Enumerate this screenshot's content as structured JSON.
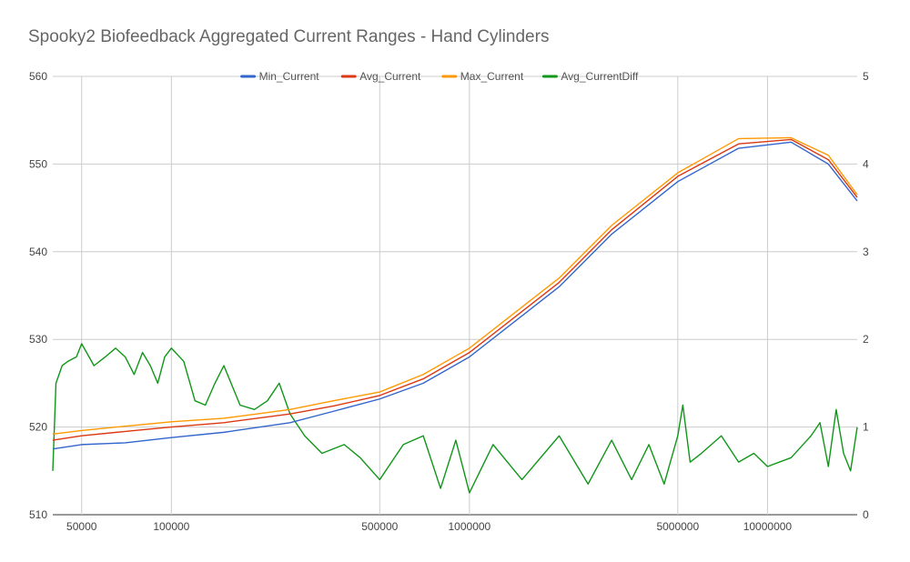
{
  "chart_data": {
    "type": "line",
    "title": "Spooky2 Biofeedback Aggregated Current Ranges - Hand Cylinders",
    "x_scale": "log",
    "xlim": [
      40000,
      20000000
    ],
    "x_ticks": [
      50000,
      100000,
      500000,
      1000000,
      5000000,
      10000000
    ],
    "x_tick_labels": [
      "50000",
      "100000",
      "500000",
      "1000000",
      "5000000",
      "10000000"
    ],
    "ylim_left": [
      510,
      560
    ],
    "y_left_ticks": [
      510,
      520,
      530,
      540,
      550,
      560
    ],
    "y_left_tick_labels": [
      "510",
      "520",
      "530",
      "540",
      "550",
      "560"
    ],
    "ylim_right": [
      0,
      5
    ],
    "y_right_ticks": [
      0,
      1,
      2,
      3,
      4,
      5
    ],
    "y_right_tick_labels": [
      "0",
      "1",
      "2",
      "3",
      "4",
      "5"
    ],
    "grid": true,
    "legend_position": "top",
    "series": [
      {
        "name": "Min_Current",
        "color": "#3366cc",
        "axis": "left",
        "x": [
          40000,
          50000,
          70000,
          100000,
          150000,
          250000,
          350000,
          500000,
          700000,
          1000000,
          2000000,
          3000000,
          5000000,
          8000000,
          12000000,
          16000000,
          20000000
        ],
        "values": [
          517.5,
          518.0,
          518.2,
          518.8,
          519.4,
          520.5,
          521.8,
          523.2,
          525.0,
          528.0,
          536.0,
          542.0,
          548.0,
          551.8,
          552.5,
          550.0,
          545.8
        ]
      },
      {
        "name": "Avg_Current",
        "color": "#dc3912",
        "axis": "left",
        "x": [
          40000,
          50000,
          70000,
          100000,
          150000,
          250000,
          350000,
          500000,
          700000,
          1000000,
          2000000,
          3000000,
          5000000,
          8000000,
          12000000,
          16000000,
          20000000
        ],
        "values": [
          518.5,
          519.0,
          519.5,
          520.0,
          520.5,
          521.5,
          522.4,
          523.6,
          525.5,
          528.5,
          536.5,
          542.5,
          548.6,
          552.3,
          552.8,
          550.5,
          546.2
        ]
      },
      {
        "name": "Max_Current",
        "color": "#ff9900",
        "axis": "left",
        "x": [
          40000,
          50000,
          70000,
          100000,
          150000,
          250000,
          350000,
          500000,
          700000,
          1000000,
          2000000,
          3000000,
          5000000,
          8000000,
          12000000,
          16000000,
          20000000
        ],
        "values": [
          519.2,
          519.6,
          520.1,
          520.6,
          521.0,
          522.0,
          523.0,
          524.0,
          526.0,
          529.0,
          537.0,
          543.0,
          549.0,
          552.9,
          553.0,
          551.0,
          546.5
        ]
      },
      {
        "name": "Avg_CurrentDiff",
        "color": "#109618",
        "axis": "right",
        "x": [
          40000,
          41000,
          43000,
          45000,
          48000,
          50000,
          55000,
          60000,
          65000,
          70000,
          75000,
          80000,
          85000,
          90000,
          95000,
          100000,
          110000,
          120000,
          130000,
          140000,
          150000,
          170000,
          190000,
          210000,
          230000,
          250000,
          280000,
          320000,
          380000,
          430000,
          500000,
          600000,
          700000,
          800000,
          900000,
          1000000,
          1200000,
          1500000,
          2000000,
          2500000,
          3000000,
          3500000,
          4000000,
          4500000,
          5000000,
          5200000,
          5500000,
          6000000,
          7000000,
          8000000,
          9000000,
          10000000,
          12000000,
          14000000,
          15000000,
          16000000,
          17000000,
          18000000,
          19000000,
          20000000
        ],
        "values": [
          0.5,
          1.5,
          1.7,
          1.75,
          1.8,
          1.95,
          1.7,
          1.8,
          1.9,
          1.8,
          1.6,
          1.85,
          1.7,
          1.5,
          1.8,
          1.9,
          1.75,
          1.3,
          1.25,
          1.5,
          1.7,
          1.25,
          1.2,
          1.3,
          1.5,
          1.15,
          0.9,
          0.7,
          0.8,
          0.65,
          0.4,
          0.8,
          0.9,
          0.3,
          0.85,
          0.25,
          0.8,
          0.4,
          0.9,
          0.35,
          0.85,
          0.4,
          0.8,
          0.35,
          0.9,
          1.25,
          0.6,
          0.7,
          0.9,
          0.6,
          0.7,
          0.55,
          0.65,
          0.9,
          1.05,
          0.55,
          1.2,
          0.7,
          0.5,
          1.0
        ]
      }
    ]
  }
}
